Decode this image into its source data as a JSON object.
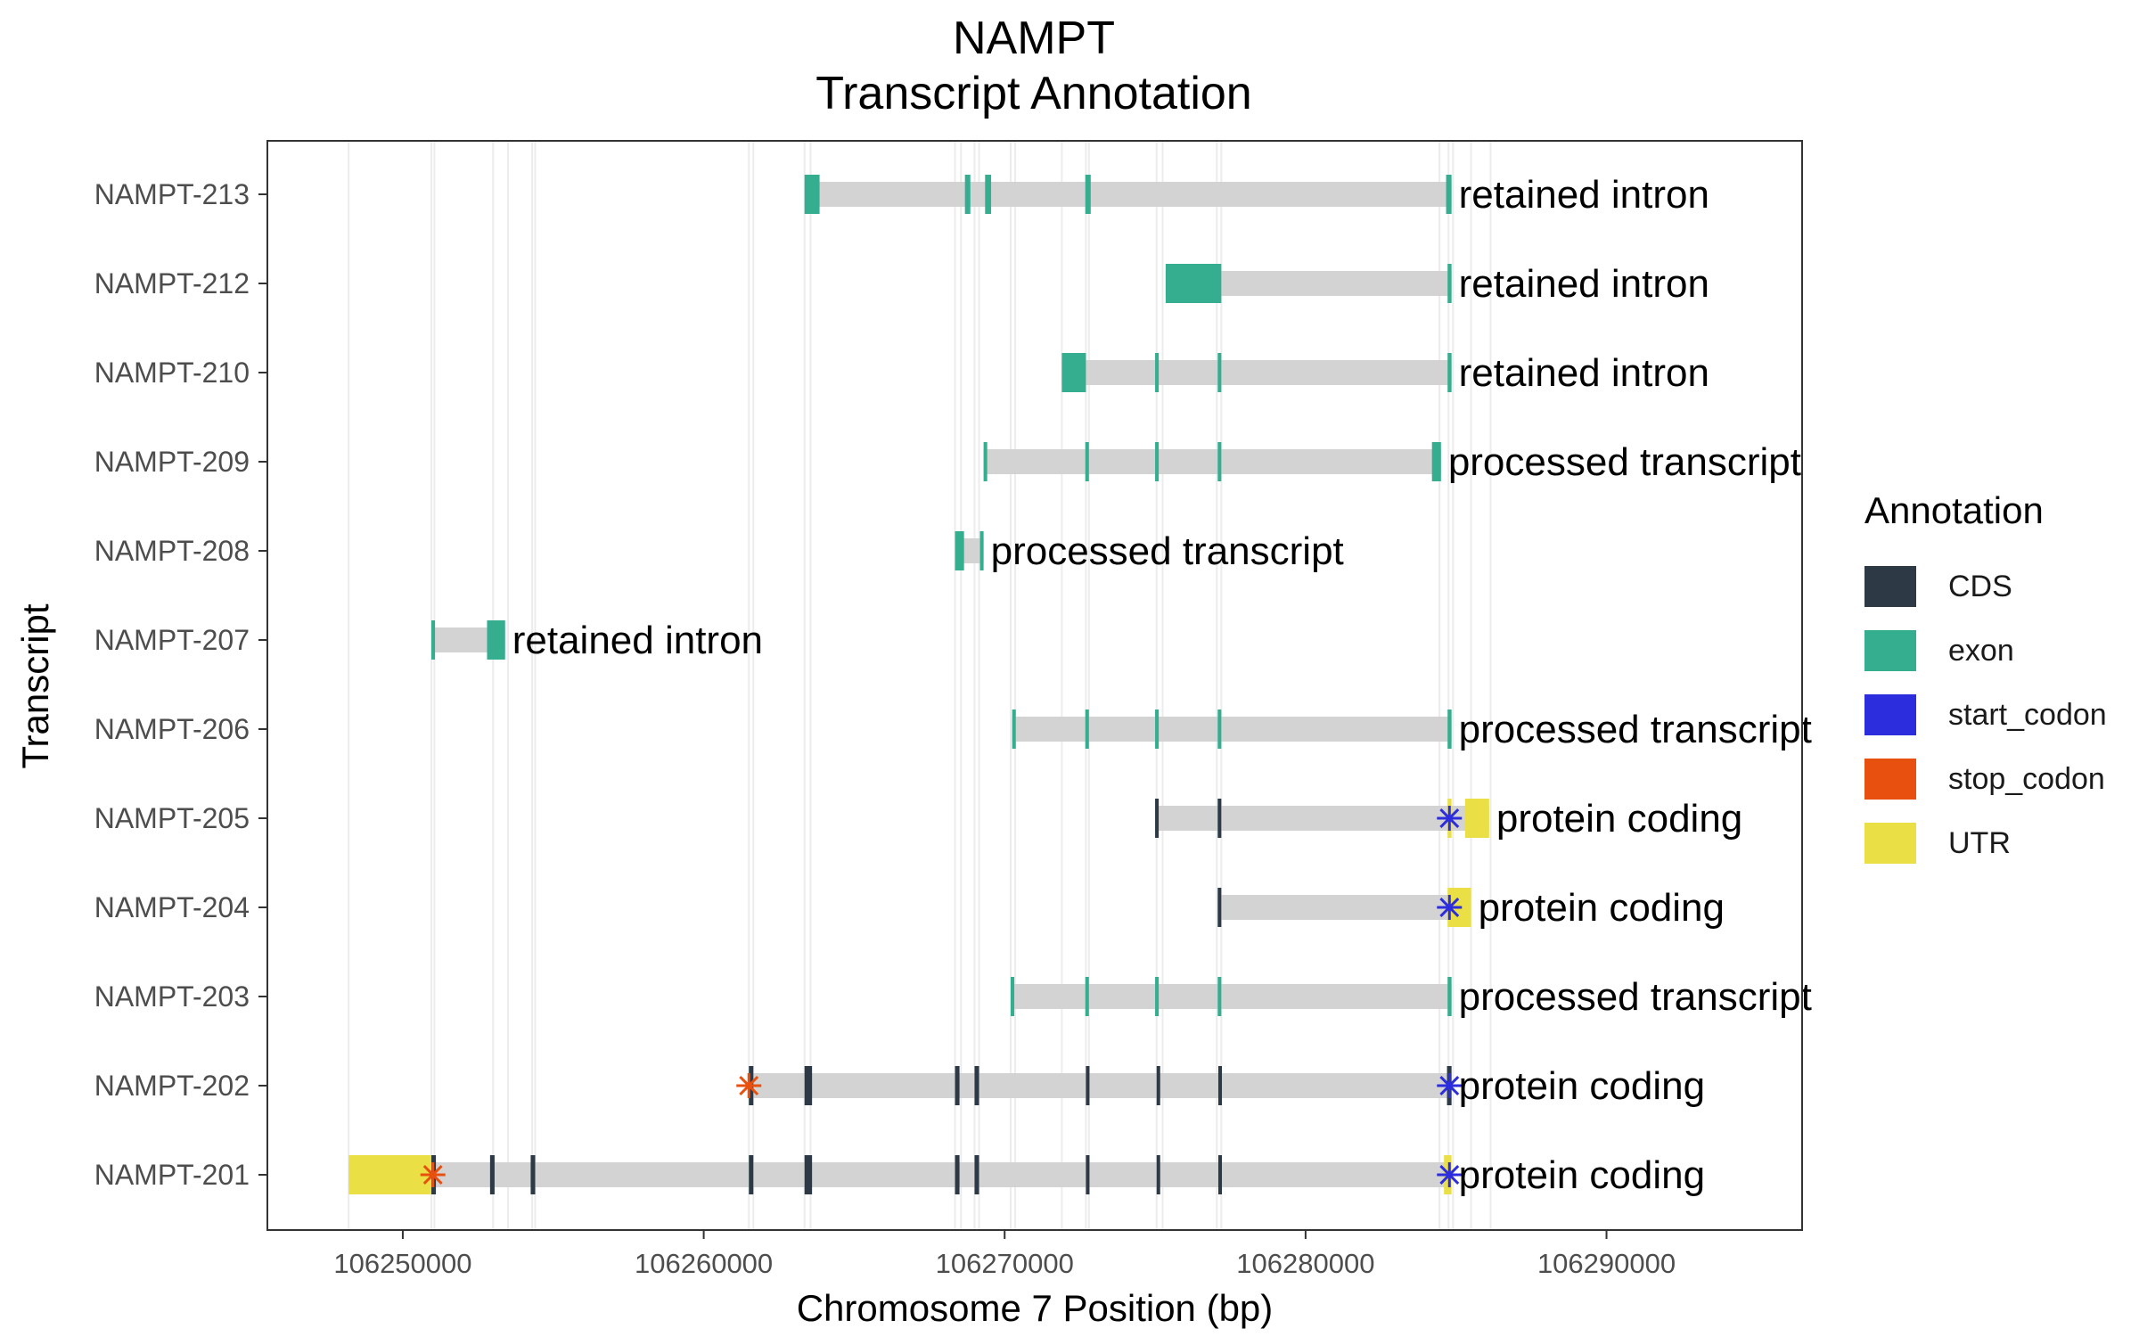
{
  "colors": {
    "CDS": "#2d3a45",
    "exon": "#35ad8f",
    "start_codon": "#2c2ddc",
    "stop_codon": "#e8500f",
    "UTR": "#eae045",
    "intron_bar": "#d3d3d3",
    "guide_line": "#ececec",
    "panel_border": "#333333"
  },
  "chart_data": {
    "type": "gantt",
    "title": [
      "NAMPT",
      "Transcript Annotation"
    ],
    "xlabel": "Chromosome 7 Position (bp)",
    "ylabel": "Transcript",
    "xlim": [
      106245500,
      106296500
    ],
    "xticks": [
      106250000,
      106260000,
      106270000,
      106280000,
      106290000
    ],
    "grid": "vertical guides at feature edges",
    "legend": {
      "title": "Annotation",
      "position": "right",
      "items": [
        "CDS",
        "exon",
        "start_codon",
        "stop_codon",
        "UTR"
      ]
    },
    "guide_lines": [
      106248200,
      106250950,
      106251050,
      106253000,
      106253500,
      106254300,
      106254400,
      106261500,
      106261650,
      106263350,
      106263550,
      106268350,
      106268550,
      106269000,
      106269150,
      106270200,
      106270350,
      106271900,
      106272700,
      106272800,
      106275050,
      106275250,
      106277050,
      106277200,
      106284450,
      106284750,
      106284900,
      106285500,
      106286150
    ],
    "transcripts": [
      {
        "name": "NAMPT-213",
        "type_label": "retained intron",
        "span": [
          106263350,
          106284850
        ],
        "features": [
          {
            "kind": "exon",
            "start": 106263350,
            "end": 106263850
          },
          {
            "kind": "exon",
            "start": 106268680,
            "end": 106268860
          },
          {
            "kind": "exon",
            "start": 106269350,
            "end": 106269550
          },
          {
            "kind": "exon",
            "start": 106272680,
            "end": 106272860
          },
          {
            "kind": "exon",
            "start": 106284670,
            "end": 106284850
          }
        ],
        "markers": []
      },
      {
        "name": "NAMPT-212",
        "type_label": "retained intron",
        "span": [
          106275350,
          106284850
        ],
        "features": [
          {
            "kind": "exon",
            "start": 106275350,
            "end": 106277200
          },
          {
            "kind": "exon",
            "start": 106284720,
            "end": 106284850
          }
        ],
        "markers": []
      },
      {
        "name": "NAMPT-210",
        "type_label": "retained intron",
        "span": [
          106271900,
          106284850
        ],
        "features": [
          {
            "kind": "exon",
            "start": 106271900,
            "end": 106272700
          },
          {
            "kind": "exon",
            "start": 106275000,
            "end": 106275120
          },
          {
            "kind": "exon",
            "start": 106277080,
            "end": 106277200
          },
          {
            "kind": "exon",
            "start": 106284720,
            "end": 106284850
          }
        ],
        "markers": []
      },
      {
        "name": "NAMPT-209",
        "type_label": "processed transcript",
        "span": [
          106269300,
          106284500
        ],
        "features": [
          {
            "kind": "exon",
            "start": 106269300,
            "end": 106269420
          },
          {
            "kind": "exon",
            "start": 106272680,
            "end": 106272800
          },
          {
            "kind": "exon",
            "start": 106275000,
            "end": 106275120
          },
          {
            "kind": "exon",
            "start": 106277080,
            "end": 106277200
          },
          {
            "kind": "exon",
            "start": 106284200,
            "end": 106284500
          }
        ],
        "markers": []
      },
      {
        "name": "NAMPT-208",
        "type_label": "processed transcript",
        "span": [
          106268350,
          106269300
        ],
        "features": [
          {
            "kind": "exon",
            "start": 106268350,
            "end": 106268650
          },
          {
            "kind": "exon",
            "start": 106269180,
            "end": 106269300
          }
        ],
        "markers": []
      },
      {
        "name": "NAMPT-207",
        "type_label": "retained intron",
        "span": [
          106250950,
          106253400
        ],
        "features": [
          {
            "kind": "exon",
            "start": 106250950,
            "end": 106251070
          },
          {
            "kind": "exon",
            "start": 106252800,
            "end": 106253400
          }
        ],
        "markers": []
      },
      {
        "name": "NAMPT-206",
        "type_label": "processed transcript",
        "span": [
          106270250,
          106284850
        ],
        "features": [
          {
            "kind": "exon",
            "start": 106270250,
            "end": 106270370
          },
          {
            "kind": "exon",
            "start": 106272680,
            "end": 106272800
          },
          {
            "kind": "exon",
            "start": 106275000,
            "end": 106275120
          },
          {
            "kind": "exon",
            "start": 106277080,
            "end": 106277200
          },
          {
            "kind": "exon",
            "start": 106284720,
            "end": 106284850
          }
        ],
        "markers": []
      },
      {
        "name": "NAMPT-205",
        "type_label": "protein coding",
        "span": [
          106275000,
          106286100
        ],
        "features": [
          {
            "kind": "CDS",
            "start": 106275000,
            "end": 106275100
          },
          {
            "kind": "CDS",
            "start": 106277080,
            "end": 106277200
          },
          {
            "kind": "UTR",
            "start": 106284720,
            "end": 106284850
          },
          {
            "kind": "UTR",
            "start": 106285300,
            "end": 106286100
          }
        ],
        "markers": [
          {
            "kind": "start_codon",
            "pos": 106284780
          }
        ]
      },
      {
        "name": "NAMPT-204",
        "type_label": "protein coding",
        "span": [
          106277080,
          106285500
        ],
        "features": [
          {
            "kind": "CDS",
            "start": 106277080,
            "end": 106277200
          },
          {
            "kind": "UTR",
            "start": 106284720,
            "end": 106285500
          }
        ],
        "markers": [
          {
            "kind": "start_codon",
            "pos": 106284780
          }
        ]
      },
      {
        "name": "NAMPT-203",
        "type_label": "processed transcript",
        "span": [
          106270200,
          106284850
        ],
        "features": [
          {
            "kind": "exon",
            "start": 106270200,
            "end": 106270320
          },
          {
            "kind": "exon",
            "start": 106272680,
            "end": 106272800
          },
          {
            "kind": "exon",
            "start": 106275000,
            "end": 106275120
          },
          {
            "kind": "exon",
            "start": 106277080,
            "end": 106277200
          },
          {
            "kind": "exon",
            "start": 106284720,
            "end": 106284850
          }
        ],
        "markers": []
      },
      {
        "name": "NAMPT-202",
        "type_label": "protein coding",
        "span": [
          106261500,
          106284850
        ],
        "features": [
          {
            "kind": "CDS",
            "start": 106261500,
            "end": 106261650
          },
          {
            "kind": "CDS",
            "start": 106263350,
            "end": 106263600
          },
          {
            "kind": "CDS",
            "start": 106268350,
            "end": 106268500
          },
          {
            "kind": "CDS",
            "start": 106269000,
            "end": 106269150
          },
          {
            "kind": "CDS",
            "start": 106272700,
            "end": 106272820
          },
          {
            "kind": "CDS",
            "start": 106275050,
            "end": 106275150
          },
          {
            "kind": "CDS",
            "start": 106277100,
            "end": 106277220
          },
          {
            "kind": "CDS",
            "start": 106284700,
            "end": 106284850
          }
        ],
        "markers": [
          {
            "kind": "stop_codon",
            "pos": 106261500
          },
          {
            "kind": "start_codon",
            "pos": 106284780
          }
        ]
      },
      {
        "name": "NAMPT-201",
        "type_label": "protein coding",
        "span": [
          106248200,
          106284850
        ],
        "features": [
          {
            "kind": "UTR",
            "start": 106248200,
            "end": 106251000
          },
          {
            "kind": "CDS",
            "start": 106250950,
            "end": 106251100
          },
          {
            "kind": "CDS",
            "start": 106252900,
            "end": 106253050
          },
          {
            "kind": "CDS",
            "start": 106254250,
            "end": 106254400
          },
          {
            "kind": "CDS",
            "start": 106261500,
            "end": 106261650
          },
          {
            "kind": "CDS",
            "start": 106263350,
            "end": 106263600
          },
          {
            "kind": "CDS",
            "start": 106268350,
            "end": 106268500
          },
          {
            "kind": "CDS",
            "start": 106269000,
            "end": 106269150
          },
          {
            "kind": "CDS",
            "start": 106272700,
            "end": 106272820
          },
          {
            "kind": "CDS",
            "start": 106275050,
            "end": 106275150
          },
          {
            "kind": "CDS",
            "start": 106277100,
            "end": 106277220
          },
          {
            "kind": "UTR",
            "start": 106284600,
            "end": 106284850
          }
        ],
        "markers": [
          {
            "kind": "stop_codon",
            "pos": 106251000
          },
          {
            "kind": "start_codon",
            "pos": 106284780
          }
        ]
      }
    ]
  }
}
